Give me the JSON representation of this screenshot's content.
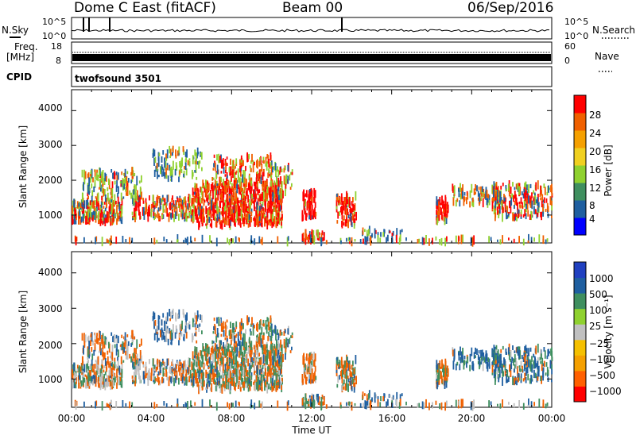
{
  "header": {
    "station": "Dome C East (fitACF)",
    "beam": "Beam 00",
    "date": "06/Sep/2016"
  },
  "top_panels": {
    "nsky_label": "N.Sky",
    "nsky_ticks": [
      "10^5",
      "10^0"
    ],
    "nsearch_label": "N.Search",
    "nsearch_ticks": [
      "10^5",
      "10^0"
    ],
    "freq_label_1": "Freq.",
    "freq_label_2": "[MHz]",
    "freq_ticks": [
      "18",
      "8"
    ],
    "nave_label": "Nave",
    "nave_ticks": [
      "60",
      "0"
    ],
    "cpid_label": "CPID",
    "cpid_value": "twofsound 3501"
  },
  "colors": {
    "power_scale": [
      "#0000ff",
      "#1f5fa0",
      "#3f8f5f",
      "#8fd12f",
      "#f0d020",
      "#f5a000",
      "#f06000",
      "#ff0000"
    ],
    "velocity_scale": [
      "#ff0000",
      "#ff6000",
      "#f5a000",
      "#f5c000",
      "#c0c0c0",
      "#8fd12f",
      "#3f8f5f",
      "#1f5fa0",
      "#2040c0"
    ]
  },
  "chart_data": [
    {
      "type": "heatmap",
      "panel": "power",
      "ylabel": "Slant Range [km]",
      "yticks": [
        "4000",
        "3000",
        "2000",
        "1000"
      ],
      "ylim": [
        200,
        4600
      ],
      "xticks": [
        "00:00",
        "04:00",
        "08:00",
        "12:00",
        "16:00",
        "20:00",
        "00:00"
      ],
      "xlim_hours": [
        0,
        24
      ],
      "colorbar_label": "Power [dB]",
      "colorbar_ticks": [
        "28",
        "24",
        "20",
        "16",
        "12",
        "8",
        "4"
      ],
      "colorbar_range": [
        0,
        30
      ]
    },
    {
      "type": "heatmap",
      "panel": "velocity",
      "ylabel": "Slant Range [km]",
      "yticks": [
        "4000",
        "3000",
        "2000",
        "1000"
      ],
      "ylim": [
        200,
        4600
      ],
      "xticks": [
        "00:00",
        "04:00",
        "08:00",
        "12:00",
        "16:00",
        "20:00",
        "00:00"
      ],
      "xlabel": "Time UT",
      "colorbar_label": "Velocity [m s⁻¹]",
      "colorbar_ticks": [
        "1000",
        "500",
        "100",
        "25",
        "−25",
        "−100",
        "−500",
        "−1000"
      ]
    }
  ]
}
